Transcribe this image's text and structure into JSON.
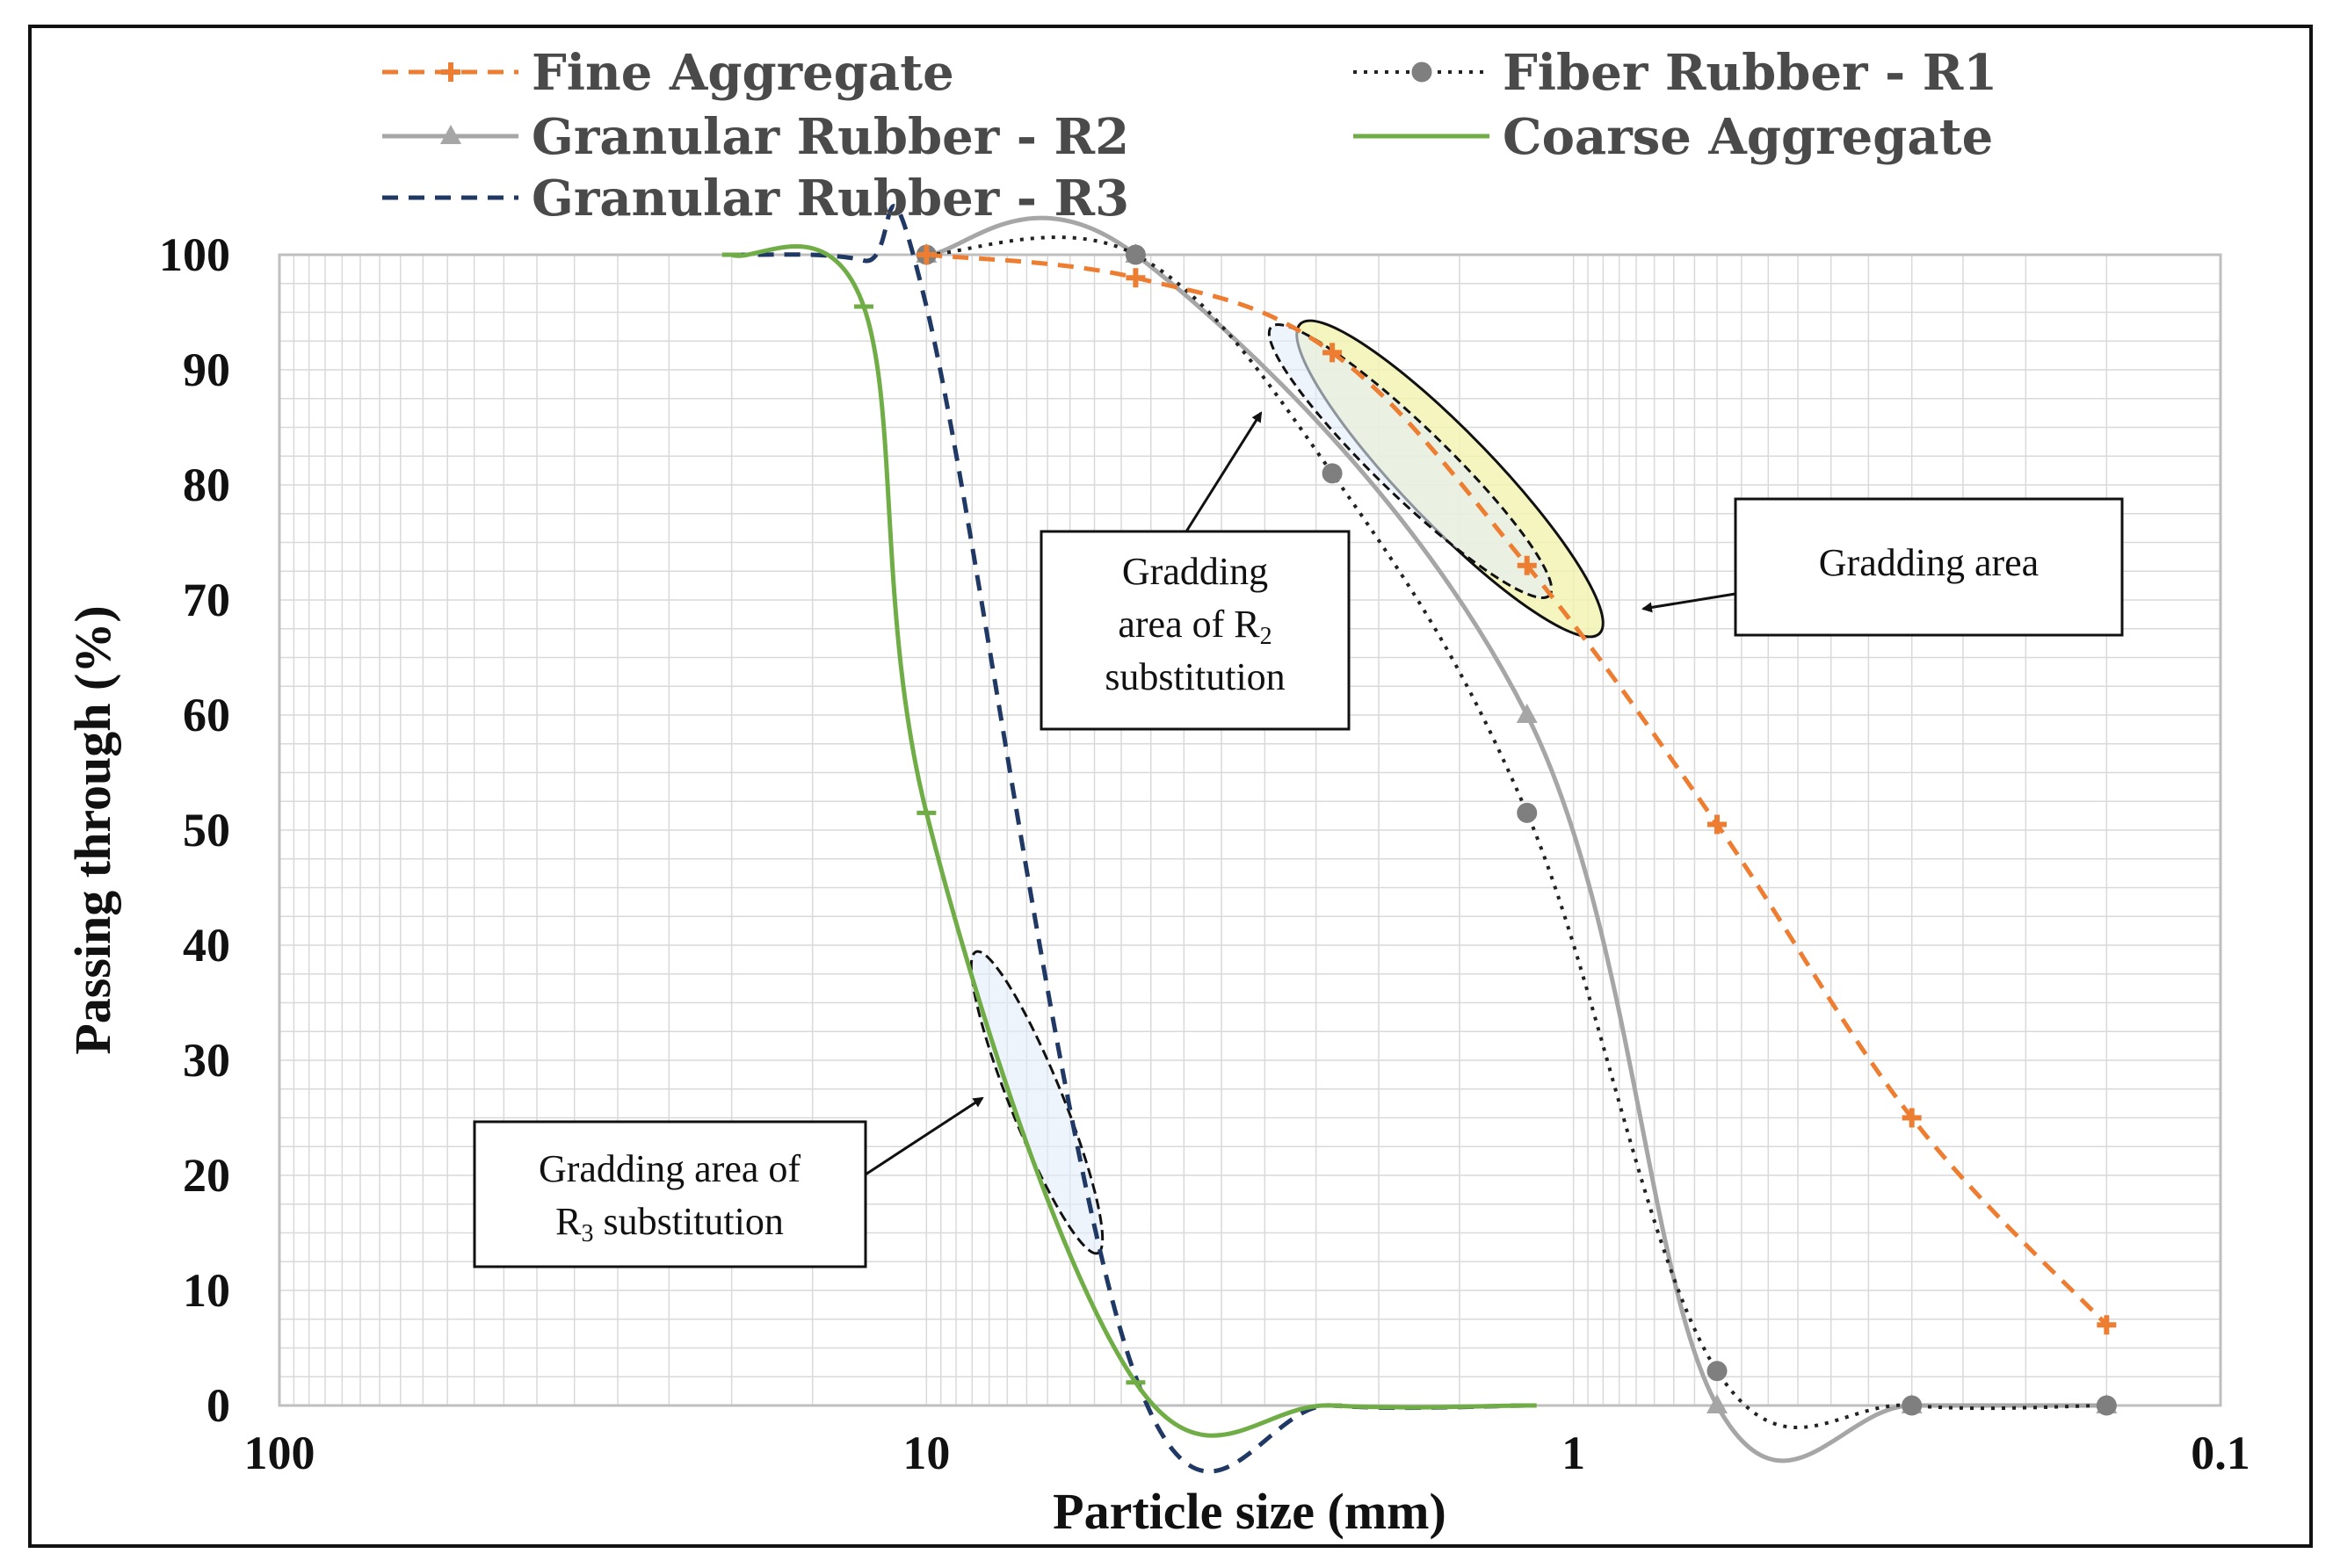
{
  "chart_data": {
    "type": "line",
    "xlabel": "Particle size (mm)",
    "ylabel": "Passing through (%)",
    "x_scale": "log-reversed",
    "xlim": [
      100,
      0.1
    ],
    "ylim": [
      0,
      100
    ],
    "x_ticks": [
      {
        "value": 100,
        "label": "100"
      },
      {
        "value": 10,
        "label": "10"
      },
      {
        "value": 1,
        "label": "1"
      },
      {
        "value": 0.1,
        "label": "0.1"
      }
    ],
    "y_ticks": [
      {
        "value": 0,
        "label": "0"
      },
      {
        "value": 10,
        "label": "10"
      },
      {
        "value": 20,
        "label": "20"
      },
      {
        "value": 30,
        "label": "30"
      },
      {
        "value": 40,
        "label": "40"
      },
      {
        "value": 50,
        "label": "50"
      },
      {
        "value": 60,
        "label": "60"
      },
      {
        "value": 70,
        "label": "70"
      },
      {
        "value": 80,
        "label": "80"
      },
      {
        "value": 90,
        "label": "90"
      },
      {
        "value": 100,
        "label": "100"
      }
    ],
    "grid": true,
    "legend_position": "top",
    "series": [
      {
        "name": "Fine Aggregate",
        "color": "#ED7D31",
        "style": "dashed",
        "marker": "plus",
        "x": [
          10,
          4.75,
          2.36,
          1.18,
          0.6,
          0.3,
          0.15
        ],
        "y": [
          100,
          98,
          91.5,
          73,
          50.5,
          25,
          7
        ]
      },
      {
        "name": "Fiber Rubber - R1",
        "color": "#222222",
        "style": "dotted",
        "marker": "circle",
        "x": [
          10,
          4.75,
          2.36,
          1.18,
          0.6,
          0.3,
          0.15
        ],
        "y": [
          100,
          100,
          81,
          51.5,
          3,
          0,
          0
        ]
      },
      {
        "name": "Granular Rubber - R2",
        "color": "#A6A6A6",
        "style": "solid",
        "marker": "triangle",
        "x": [
          10,
          4.75,
          1.18,
          0.6,
          0.3,
          0.15
        ],
        "y": [
          100,
          100,
          60,
          0,
          0,
          0
        ]
      },
      {
        "name": "Coarse Aggregate",
        "color": "#70AD47",
        "style": "solid",
        "marker": "dash",
        "x": [
          20,
          12.5,
          10,
          4.75,
          2.36,
          1.18
        ],
        "y": [
          100,
          95.5,
          51.5,
          2,
          0,
          0
        ]
      },
      {
        "name": "Granular Rubber - R3",
        "color": "#203864",
        "style": "dashed",
        "marker": "none",
        "x": [
          20,
          12.5,
          10,
          4.75,
          2.36,
          1.18
        ],
        "y": [
          100,
          99.5,
          95.5,
          2.5,
          0,
          0
        ]
      }
    ],
    "annotations": [
      {
        "id": "gradding-area",
        "text": "Gradding area"
      },
      {
        "id": "gradding-area-r2",
        "line1": "Gradding",
        "line2_main": "area of R",
        "line2_sub": "2",
        "line3": "substitution"
      },
      {
        "id": "gradding-area-r3",
        "line1": "Gradding area of",
        "line2_main": "R",
        "line2_sub": "3",
        "line2_rest": " substitution"
      }
    ]
  }
}
